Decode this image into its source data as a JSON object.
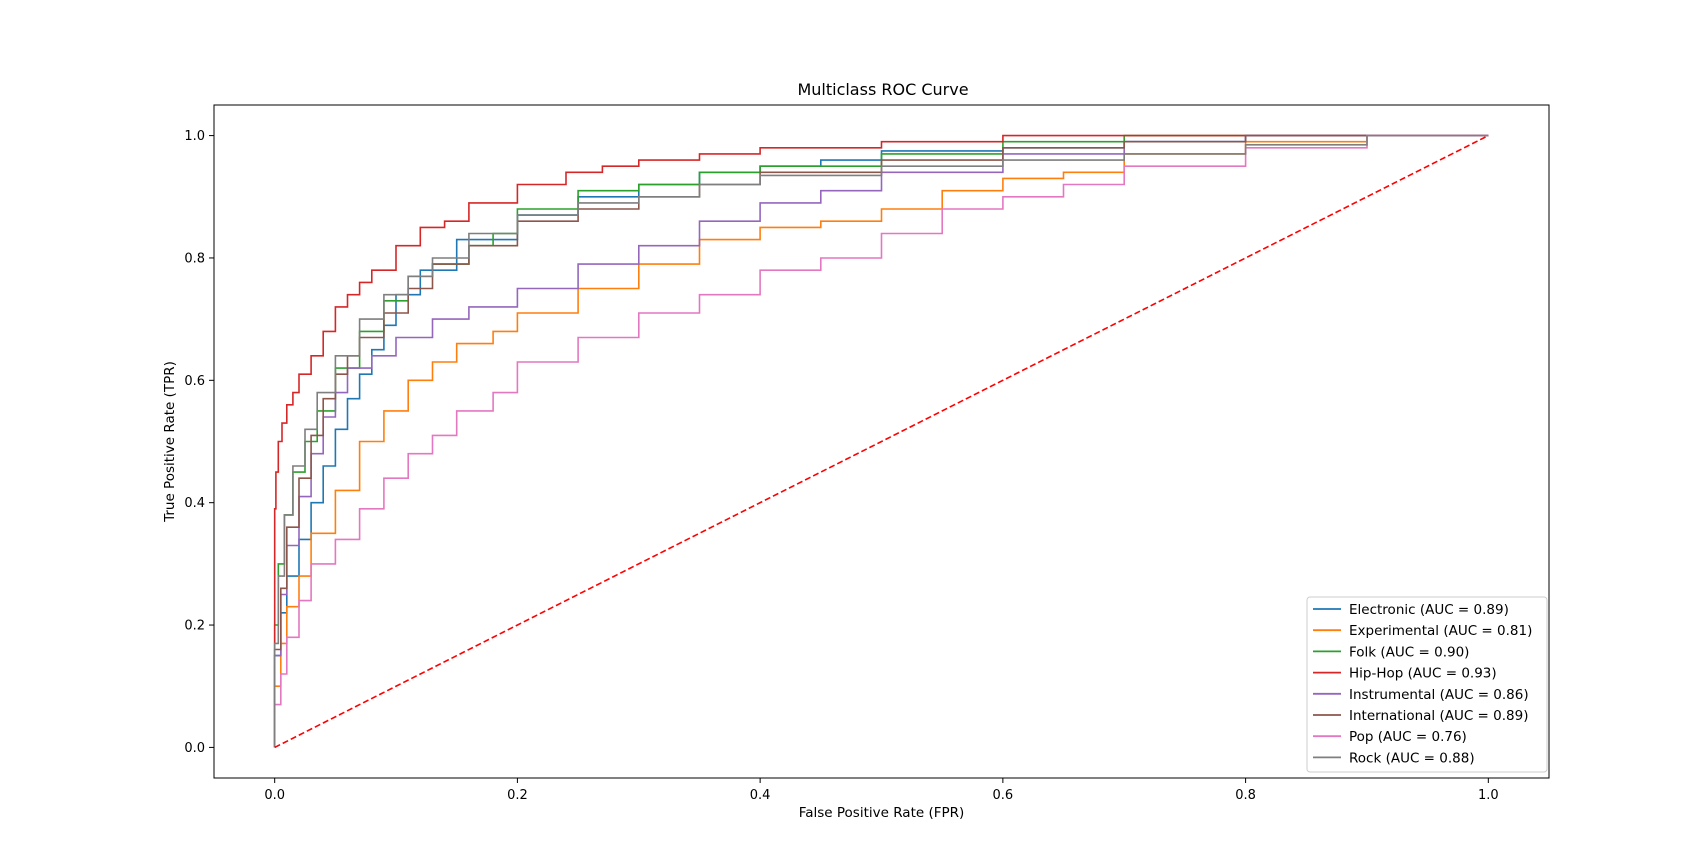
{
  "chart_data": {
    "type": "line",
    "title": "Multiclass ROC Curve",
    "xlabel": "False Positive Rate (FPR)",
    "ylabel": "True Positive Rate (TPR)",
    "xlim": [
      -0.05,
      1.05
    ],
    "ylim": [
      -0.05,
      1.05
    ],
    "xticks": [
      0.0,
      0.2,
      0.4,
      0.6,
      0.8,
      1.0
    ],
    "yticks": [
      0.0,
      0.2,
      0.4,
      0.6,
      0.8,
      1.0
    ],
    "xtick_labels": [
      "0.0",
      "0.2",
      "0.4",
      "0.6",
      "0.8",
      "1.0"
    ],
    "ytick_labels": [
      "0.0",
      "0.2",
      "0.4",
      "0.6",
      "0.8",
      "1.0"
    ],
    "grid": false,
    "legend_position": "lower-right",
    "series": [
      {
        "name": "Electronic (AUC = 0.89)",
        "color": "#1f77b4",
        "x": [
          0,
          0.005,
          0.01,
          0.02,
          0.03,
          0.04,
          0.05,
          0.06,
          0.07,
          0.08,
          0.09,
          0.1,
          0.12,
          0.15,
          0.2,
          0.25,
          0.3,
          0.35,
          0.4,
          0.45,
          0.5,
          0.6,
          0.7,
          0.8,
          0.9,
          1.0
        ],
        "y": [
          0,
          0.15,
          0.22,
          0.28,
          0.34,
          0.4,
          0.46,
          0.52,
          0.57,
          0.61,
          0.65,
          0.69,
          0.74,
          0.78,
          0.83,
          0.87,
          0.9,
          0.92,
          0.94,
          0.95,
          0.96,
          0.975,
          0.98,
          0.99,
          1.0,
          1.0
        ]
      },
      {
        "name": "Experimental (AUC = 0.81)",
        "color": "#ff7f0e",
        "x": [
          0,
          0.005,
          0.01,
          0.02,
          0.03,
          0.05,
          0.07,
          0.09,
          0.11,
          0.13,
          0.15,
          0.18,
          0.2,
          0.25,
          0.3,
          0.35,
          0.4,
          0.45,
          0.5,
          0.55,
          0.6,
          0.65,
          0.7,
          0.8,
          0.9,
          1.0
        ],
        "y": [
          0,
          0.1,
          0.17,
          0.23,
          0.28,
          0.35,
          0.42,
          0.5,
          0.55,
          0.6,
          0.63,
          0.66,
          0.68,
          0.71,
          0.75,
          0.79,
          0.83,
          0.85,
          0.86,
          0.88,
          0.91,
          0.93,
          0.94,
          0.97,
          0.99,
          1.0
        ]
      },
      {
        "name": "Folk (AUC = 0.90)",
        "color": "#2ca02c",
        "x": [
          0,
          0.003,
          0.008,
          0.015,
          0.025,
          0.035,
          0.05,
          0.07,
          0.09,
          0.11,
          0.13,
          0.16,
          0.18,
          0.2,
          0.25,
          0.3,
          0.35,
          0.4,
          0.5,
          0.6,
          0.7,
          0.8,
          0.9,
          1.0
        ],
        "y": [
          0,
          0.2,
          0.3,
          0.38,
          0.45,
          0.5,
          0.55,
          0.62,
          0.68,
          0.73,
          0.77,
          0.79,
          0.82,
          0.84,
          0.88,
          0.91,
          0.92,
          0.94,
          0.95,
          0.97,
          0.99,
          1.0,
          1.0,
          1.0
        ]
      },
      {
        "name": "Hip-Hop (AUC = 0.93)",
        "color": "#d62728",
        "x": [
          0,
          0.001,
          0.003,
          0.006,
          0.01,
          0.015,
          0.02,
          0.03,
          0.04,
          0.05,
          0.06,
          0.07,
          0.08,
          0.1,
          0.12,
          0.14,
          0.16,
          0.2,
          0.24,
          0.27,
          0.3,
          0.35,
          0.4,
          0.5,
          0.6,
          0.7,
          0.8,
          0.9,
          1.0
        ],
        "y": [
          0,
          0.39,
          0.45,
          0.5,
          0.53,
          0.56,
          0.58,
          0.61,
          0.64,
          0.68,
          0.72,
          0.74,
          0.76,
          0.78,
          0.82,
          0.85,
          0.86,
          0.89,
          0.92,
          0.94,
          0.95,
          0.96,
          0.97,
          0.98,
          0.99,
          1.0,
          1.0,
          1.0,
          1.0
        ]
      },
      {
        "name": "Instrumental (AUC = 0.86)",
        "color": "#9467bd",
        "x": [
          0,
          0.005,
          0.01,
          0.02,
          0.03,
          0.04,
          0.05,
          0.06,
          0.08,
          0.1,
          0.13,
          0.16,
          0.2,
          0.25,
          0.3,
          0.35,
          0.4,
          0.45,
          0.5,
          0.6,
          0.7,
          0.8,
          0.9,
          1.0
        ],
        "y": [
          0,
          0.15,
          0.25,
          0.33,
          0.41,
          0.48,
          0.54,
          0.58,
          0.62,
          0.64,
          0.67,
          0.7,
          0.72,
          0.75,
          0.79,
          0.82,
          0.86,
          0.89,
          0.91,
          0.94,
          0.97,
          0.99,
          1.0,
          1.0
        ]
      },
      {
        "name": "International (AUC = 0.89)",
        "color": "#8c564b",
        "x": [
          0,
          0.005,
          0.01,
          0.02,
          0.03,
          0.04,
          0.05,
          0.06,
          0.07,
          0.09,
          0.11,
          0.13,
          0.16,
          0.2,
          0.25,
          0.3,
          0.35,
          0.4,
          0.5,
          0.6,
          0.7,
          0.8,
          0.9,
          1.0
        ],
        "y": [
          0,
          0.16,
          0.26,
          0.36,
          0.44,
          0.51,
          0.57,
          0.61,
          0.64,
          0.67,
          0.71,
          0.75,
          0.79,
          0.82,
          0.86,
          0.88,
          0.9,
          0.92,
          0.94,
          0.96,
          0.98,
          0.99,
          1.0,
          1.0
        ]
      },
      {
        "name": "Pop (AUC = 0.76)",
        "color": "#e377c2",
        "x": [
          0,
          0.005,
          0.01,
          0.02,
          0.03,
          0.05,
          0.07,
          0.09,
          0.11,
          0.13,
          0.15,
          0.18,
          0.2,
          0.25,
          0.3,
          0.35,
          0.4,
          0.45,
          0.5,
          0.55,
          0.6,
          0.65,
          0.7,
          0.8,
          0.9,
          1.0
        ],
        "y": [
          0,
          0.07,
          0.12,
          0.18,
          0.24,
          0.3,
          0.34,
          0.39,
          0.44,
          0.48,
          0.51,
          0.55,
          0.58,
          0.63,
          0.67,
          0.71,
          0.74,
          0.78,
          0.8,
          0.84,
          0.88,
          0.9,
          0.92,
          0.95,
          0.98,
          1.0
        ]
      },
      {
        "name": "Rock (AUC = 0.88)",
        "color": "#7f7f7f",
        "x": [
          0,
          0.003,
          0.008,
          0.015,
          0.025,
          0.035,
          0.05,
          0.07,
          0.09,
          0.11,
          0.13,
          0.16,
          0.2,
          0.25,
          0.3,
          0.35,
          0.4,
          0.5,
          0.6,
          0.7,
          0.8,
          0.9,
          0.95,
          1.0
        ],
        "y": [
          0,
          0.17,
          0.28,
          0.38,
          0.46,
          0.52,
          0.58,
          0.64,
          0.7,
          0.74,
          0.77,
          0.8,
          0.84,
          0.87,
          0.89,
          0.9,
          0.92,
          0.935,
          0.95,
          0.96,
          0.97,
          0.985,
          1.0,
          1.0
        ]
      }
    ],
    "diagonal": {
      "x": [
        0,
        1
      ],
      "y": [
        0,
        1
      ],
      "color": "#ff0000",
      "style": "dashed"
    }
  }
}
